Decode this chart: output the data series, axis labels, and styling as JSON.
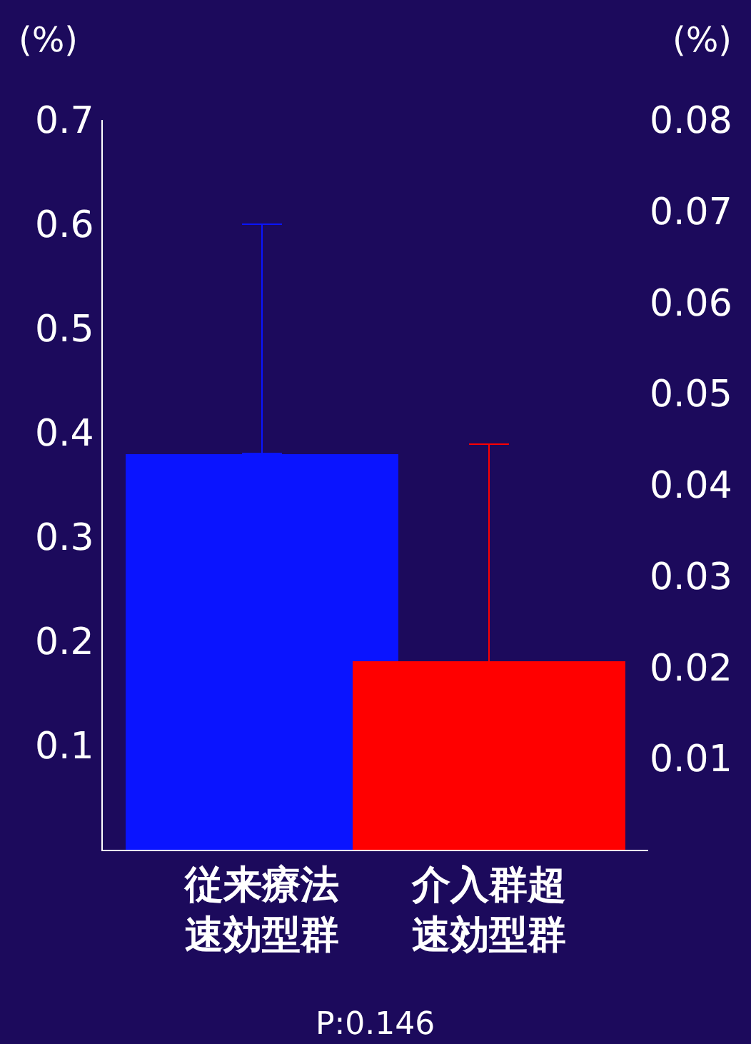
{
  "chart_data": {
    "type": "bar",
    "ylabel": "(%)",
    "y2label": "(%)",
    "categories": [
      "従来療法速効型群",
      "介入群超速効型群"
    ],
    "series": [
      {
        "color": "#0a14ff",
        "values": [
          0.38,
          null
        ],
        "errors": [
          [
            0.38,
            0.6
          ],
          null
        ]
      },
      {
        "color": "#ff0000",
        "axis": "y2",
        "values": [
          null,
          0.0206
        ],
        "errors": [
          null,
          [
            0.0206,
            0.0445
          ]
        ]
      }
    ],
    "ylim": [
      0,
      0.7
    ],
    "yticks": [
      0.1,
      0.2,
      0.3,
      0.4,
      0.5,
      0.6,
      0.7
    ],
    "y2lim": [
      0,
      0.08
    ],
    "y2ticks": [
      0.01,
      0.02,
      0.03,
      0.04,
      0.05,
      0.06,
      0.07,
      0.08
    ],
    "annotations": [
      "P:0.146"
    ]
  }
}
